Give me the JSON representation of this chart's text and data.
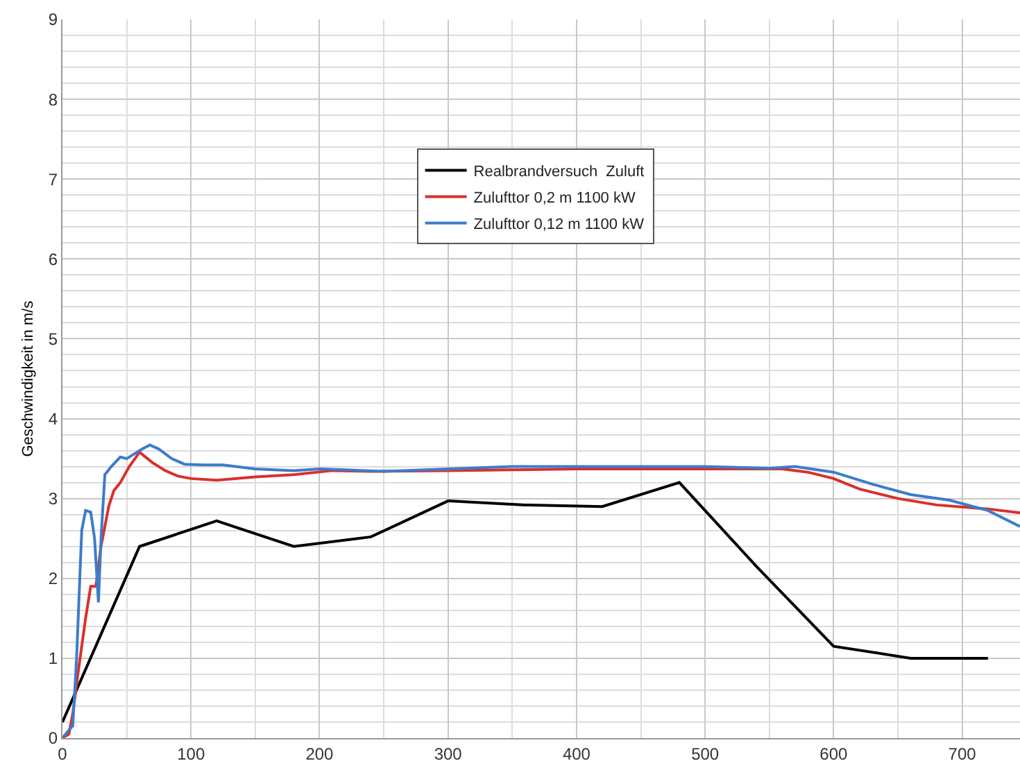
{
  "chart_data": {
    "type": "line",
    "ylabel": "Geschwindigkeit in m/s",
    "xlim": [
      0,
      745
    ],
    "xticks": [
      0,
      100,
      200,
      300,
      400,
      500,
      600,
      700
    ],
    "ylim": [
      0,
      9
    ],
    "yticks": [
      0,
      1,
      2,
      3,
      4,
      5,
      6,
      7,
      8,
      9
    ],
    "grid": true,
    "legend": "top",
    "marker": "none",
    "line_style": "solid",
    "series": [
      {
        "name": "Realbrandversuch  Zuluft",
        "color": "#000000",
        "x": [
          0,
          60,
          120,
          180,
          240,
          300,
          360,
          420,
          480,
          540,
          600,
          660,
          720
        ],
        "values": [
          0.2,
          2.4,
          2.72,
          2.4,
          2.52,
          2.97,
          2.92,
          2.9,
          3.2,
          2.15,
          1.15,
          1.0,
          1.0
        ]
      },
      {
        "name": "Zulufttor 0,2 m 1100 kW",
        "color": "#d9302c",
        "x": [
          0,
          5,
          8,
          12,
          18,
          22,
          26,
          30,
          36,
          40,
          45,
          52,
          60,
          70,
          80,
          90,
          100,
          120,
          150,
          180,
          210,
          240,
          300,
          350,
          400,
          450,
          500,
          560,
          580,
          600,
          620,
          650,
          680,
          720,
          745
        ],
        "values": [
          0,
          0.05,
          0.3,
          0.8,
          1.5,
          1.9,
          1.9,
          2.4,
          2.9,
          3.1,
          3.2,
          3.4,
          3.58,
          3.45,
          3.35,
          3.28,
          3.25,
          3.23,
          3.27,
          3.3,
          3.35,
          3.34,
          3.35,
          3.36,
          3.37,
          3.37,
          3.37,
          3.37,
          3.33,
          3.25,
          3.12,
          3.0,
          2.92,
          2.87,
          2.82
        ]
      },
      {
        "name": "Zulufttor 0,12 m 1100 kW",
        "color": "#3d7cc9",
        "x": [
          0,
          5,
          8,
          11,
          15,
          18,
          22,
          25,
          28,
          30,
          33,
          38,
          45,
          50,
          55,
          62,
          68,
          75,
          85,
          95,
          110,
          125,
          150,
          180,
          200,
          220,
          250,
          300,
          350,
          400,
          450,
          500,
          550,
          570,
          600,
          630,
          660,
          690,
          720,
          745
        ],
        "values": [
          0,
          0.1,
          0.15,
          1.0,
          2.6,
          2.85,
          2.83,
          2.5,
          1.7,
          2.5,
          3.3,
          3.4,
          3.52,
          3.5,
          3.55,
          3.62,
          3.67,
          3.62,
          3.5,
          3.43,
          3.42,
          3.42,
          3.37,
          3.35,
          3.37,
          3.36,
          3.34,
          3.37,
          3.4,
          3.4,
          3.4,
          3.4,
          3.38,
          3.4,
          3.33,
          3.18,
          3.05,
          2.98,
          2.85,
          2.65
        ]
      }
    ]
  }
}
